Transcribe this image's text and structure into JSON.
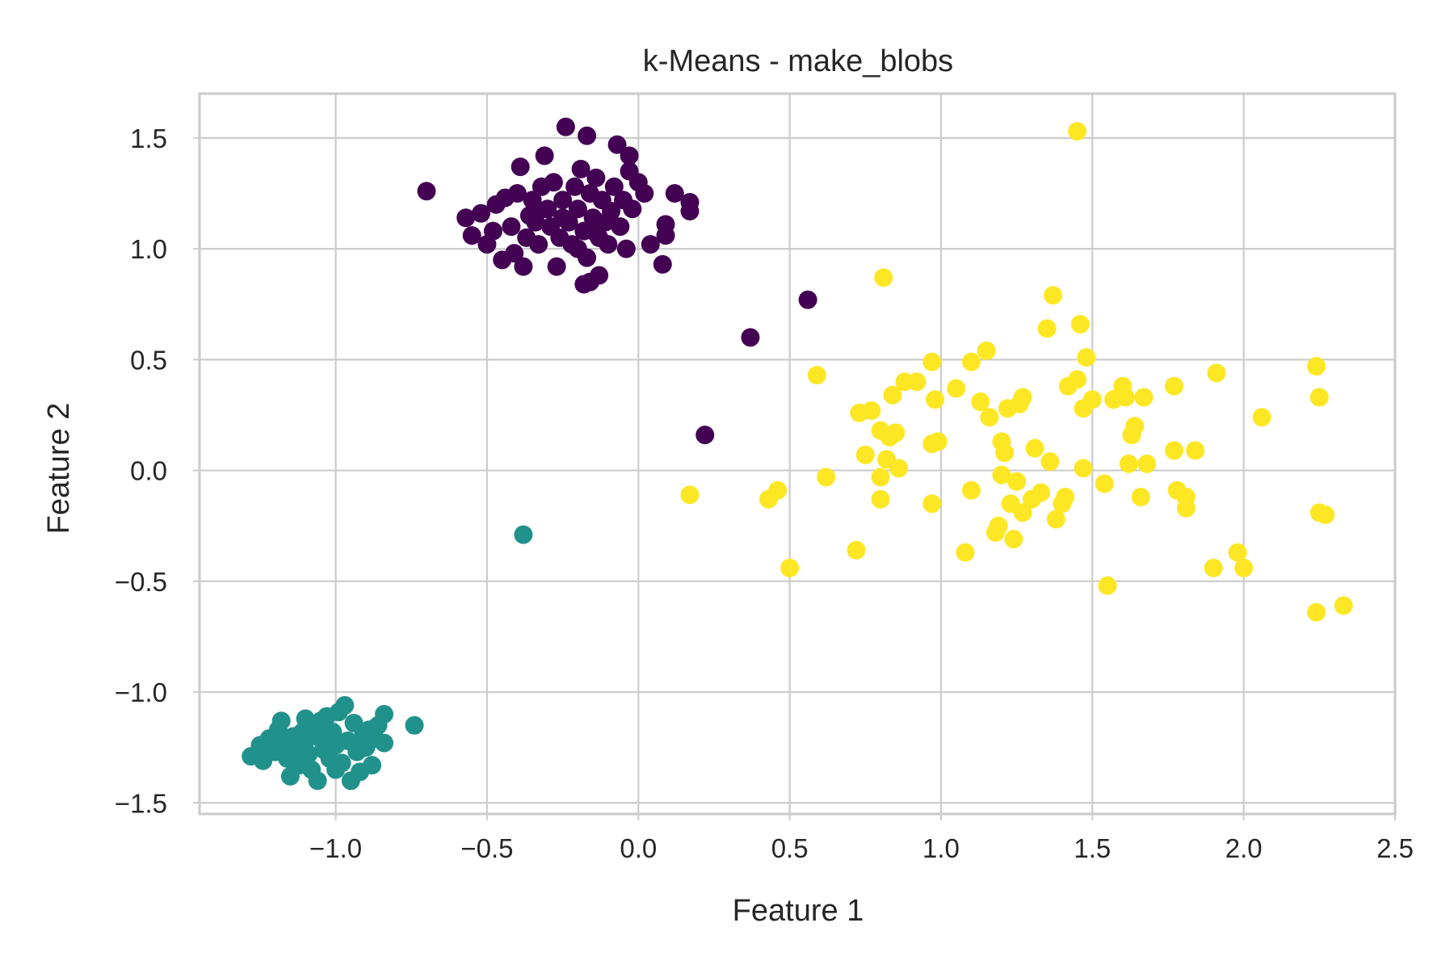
{
  "chart_data": {
    "type": "scatter",
    "title": "k-Means - make_blobs",
    "xlabel": "Feature 1",
    "ylabel": "Feature 2",
    "xlim": [
      -1.45,
      2.5
    ],
    "ylim": [
      -1.55,
      1.7
    ],
    "xticks": [
      -1.0,
      -0.5,
      0.0,
      0.5,
      1.0,
      1.5,
      2.0,
      2.5
    ],
    "xtick_labels": [
      "−1.0",
      "−0.5",
      "0.0",
      "0.5",
      "1.0",
      "1.5",
      "2.0",
      "2.5"
    ],
    "yticks": [
      -1.5,
      -1.0,
      -0.5,
      0.0,
      0.5,
      1.0,
      1.5
    ],
    "ytick_labels": [
      "−1.5",
      "−1.0",
      "−0.5",
      "0.0",
      "0.5",
      "1.0",
      "1.5"
    ],
    "grid": true,
    "series": [
      {
        "color": "#440154",
        "points": [
          [
            -0.7,
            1.26
          ],
          [
            -0.57,
            1.14
          ],
          [
            -0.55,
            1.06
          ],
          [
            -0.52,
            1.16
          ],
          [
            -0.5,
            1.02
          ],
          [
            -0.48,
            1.08
          ],
          [
            -0.47,
            1.2
          ],
          [
            -0.45,
            0.95
          ],
          [
            -0.44,
            1.23
          ],
          [
            -0.42,
            1.1
          ],
          [
            -0.41,
            0.98
          ],
          [
            -0.4,
            1.25
          ],
          [
            -0.39,
            1.37
          ],
          [
            -0.38,
            0.92
          ],
          [
            -0.37,
            1.05
          ],
          [
            -0.36,
            1.15
          ],
          [
            -0.35,
            1.22
          ],
          [
            -0.34,
            1.12
          ],
          [
            -0.33,
            1.02
          ],
          [
            -0.32,
            1.28
          ],
          [
            -0.31,
            1.42
          ],
          [
            -0.3,
            1.18
          ],
          [
            -0.29,
            1.1
          ],
          [
            -0.28,
            1.3
          ],
          [
            -0.27,
            0.92
          ],
          [
            -0.26,
            1.05
          ],
          [
            -0.25,
            1.22
          ],
          [
            -0.24,
            1.55
          ],
          [
            -0.23,
            1.12
          ],
          [
            -0.22,
            1.02
          ],
          [
            -0.21,
            1.28
          ],
          [
            -0.2,
            1.18
          ],
          [
            -0.19,
            1.36
          ],
          [
            -0.18,
            1.08
          ],
          [
            -0.17,
            0.96
          ],
          [
            -0.17,
            1.51
          ],
          [
            -0.16,
            1.25
          ],
          [
            -0.15,
            1.14
          ],
          [
            -0.14,
            1.32
          ],
          [
            -0.13,
            0.88
          ],
          [
            -0.13,
            1.05
          ],
          [
            -0.12,
            1.22
          ],
          [
            -0.11,
            1.12
          ],
          [
            -0.1,
            1.02
          ],
          [
            -0.09,
            1.17
          ],
          [
            -0.08,
            1.28
          ],
          [
            -0.07,
            1.47
          ],
          [
            -0.06,
            1.1
          ],
          [
            -0.05,
            1.22
          ],
          [
            -0.04,
            1.0
          ],
          [
            -0.03,
            1.35
          ],
          [
            -0.03,
            1.42
          ],
          [
            -0.02,
            1.18
          ],
          [
            0.0,
            1.3
          ],
          [
            0.02,
            1.25
          ],
          [
            0.04,
            1.02
          ],
          [
            0.08,
            0.93
          ],
          [
            0.09,
            1.06
          ],
          [
            0.09,
            1.11
          ],
          [
            0.12,
            1.25
          ],
          [
            0.17,
            1.17
          ],
          [
            0.17,
            1.21
          ],
          [
            -0.18,
            0.84
          ],
          [
            -0.16,
            0.85
          ],
          [
            -0.2,
            1.0
          ],
          [
            -0.15,
            1.08
          ],
          [
            -0.25,
            1.14
          ],
          [
            -0.33,
            1.17
          ],
          [
            0.37,
            0.6
          ],
          [
            0.56,
            0.77
          ],
          [
            0.22,
            0.16
          ]
        ]
      },
      {
        "color": "#21918c",
        "points": [
          [
            -1.28,
            -1.29
          ],
          [
            -1.25,
            -1.24
          ],
          [
            -1.24,
            -1.31
          ],
          [
            -1.22,
            -1.21
          ],
          [
            -1.2,
            -1.27
          ],
          [
            -1.19,
            -1.17
          ],
          [
            -1.18,
            -1.13
          ],
          [
            -1.17,
            -1.24
          ],
          [
            -1.16,
            -1.3
          ],
          [
            -1.15,
            -1.38
          ],
          [
            -1.14,
            -1.2
          ],
          [
            -1.13,
            -1.25
          ],
          [
            -1.12,
            -1.33
          ],
          [
            -1.11,
            -1.18
          ],
          [
            -1.1,
            -1.22
          ],
          [
            -1.09,
            -1.28
          ],
          [
            -1.08,
            -1.35
          ],
          [
            -1.07,
            -1.15
          ],
          [
            -1.06,
            -1.4
          ],
          [
            -1.05,
            -1.21
          ],
          [
            -1.04,
            -1.26
          ],
          [
            -1.03,
            -1.11
          ],
          [
            -1.02,
            -1.3
          ],
          [
            -1.01,
            -1.18
          ],
          [
            -1.0,
            -1.24
          ],
          [
            -0.99,
            -1.09
          ],
          [
            -0.98,
            -1.32
          ],
          [
            -0.97,
            -1.06
          ],
          [
            -0.96,
            -1.22
          ],
          [
            -0.95,
            -1.4
          ],
          [
            -0.94,
            -1.14
          ],
          [
            -0.93,
            -1.27
          ],
          [
            -0.92,
            -1.36
          ],
          [
            -0.91,
            -1.2
          ],
          [
            -0.9,
            -1.25
          ],
          [
            -0.89,
            -1.17
          ],
          [
            -0.88,
            -1.33
          ],
          [
            -0.87,
            -1.21
          ],
          [
            -0.86,
            -1.15
          ],
          [
            -0.84,
            -1.23
          ],
          [
            -0.84,
            -1.1
          ],
          [
            -0.74,
            -1.15
          ],
          [
            -1.05,
            -1.13
          ],
          [
            -1.0,
            -1.35
          ],
          [
            -1.1,
            -1.12
          ],
          [
            -0.38,
            -0.29
          ]
        ]
      },
      {
        "color": "#fde725",
        "points": [
          [
            0.17,
            -0.11
          ],
          [
            0.43,
            -0.13
          ],
          [
            0.46,
            -0.09
          ],
          [
            0.5,
            -0.44
          ],
          [
            0.59,
            0.43
          ],
          [
            0.62,
            -0.03
          ],
          [
            0.72,
            -0.36
          ],
          [
            0.73,
            0.26
          ],
          [
            0.75,
            0.07
          ],
          [
            0.77,
            0.27
          ],
          [
            0.8,
            -0.13
          ],
          [
            0.8,
            0.18
          ],
          [
            0.81,
            0.87
          ],
          [
            0.82,
            0.05
          ],
          [
            0.83,
            0.15
          ],
          [
            0.84,
            0.34
          ],
          [
            0.85,
            0.17
          ],
          [
            0.86,
            0.01
          ],
          [
            0.88,
            0.4
          ],
          [
            0.92,
            0.4
          ],
          [
            0.97,
            0.12
          ],
          [
            0.97,
            0.49
          ],
          [
            0.98,
            0.32
          ],
          [
            0.99,
            0.13
          ],
          [
            0.97,
            -0.15
          ],
          [
            1.05,
            0.37
          ],
          [
            1.08,
            -0.37
          ],
          [
            1.1,
            -0.09
          ],
          [
            1.1,
            0.49
          ],
          [
            1.13,
            0.31
          ],
          [
            1.15,
            0.54
          ],
          [
            1.16,
            0.24
          ],
          [
            1.19,
            -0.25
          ],
          [
            1.2,
            0.13
          ],
          [
            1.21,
            0.08
          ],
          [
            1.22,
            0.28
          ],
          [
            1.23,
            -0.15
          ],
          [
            1.24,
            -0.31
          ],
          [
            1.25,
            -0.05
          ],
          [
            1.26,
            0.3
          ],
          [
            1.27,
            -0.19
          ],
          [
            1.27,
            0.33
          ],
          [
            1.3,
            -0.13
          ],
          [
            1.31,
            0.1
          ],
          [
            1.33,
            -0.1
          ],
          [
            1.35,
            0.64
          ],
          [
            1.36,
            0.04
          ],
          [
            1.37,
            0.79
          ],
          [
            1.38,
            -0.22
          ],
          [
            1.4,
            -0.15
          ],
          [
            1.41,
            -0.12
          ],
          [
            1.42,
            0.38
          ],
          [
            1.45,
            0.41
          ],
          [
            1.46,
            0.66
          ],
          [
            1.47,
            0.28
          ],
          [
            1.47,
            0.01
          ],
          [
            1.48,
            0.51
          ],
          [
            1.5,
            0.32
          ],
          [
            1.54,
            -0.06
          ],
          [
            1.55,
            -0.52
          ],
          [
            1.57,
            0.32
          ],
          [
            1.6,
            0.38
          ],
          [
            1.61,
            0.33
          ],
          [
            1.62,
            0.03
          ],
          [
            1.63,
            0.16
          ],
          [
            1.64,
            0.2
          ],
          [
            1.66,
            -0.12
          ],
          [
            1.67,
            0.33
          ],
          [
            1.68,
            0.03
          ],
          [
            1.77,
            0.38
          ],
          [
            1.77,
            0.09
          ],
          [
            1.78,
            -0.09
          ],
          [
            1.81,
            -0.12
          ],
          [
            1.81,
            -0.17
          ],
          [
            1.84,
            0.09
          ],
          [
            1.9,
            -0.44
          ],
          [
            1.91,
            0.44
          ],
          [
            1.98,
            -0.37
          ],
          [
            2.0,
            -0.44
          ],
          [
            2.06,
            0.24
          ],
          [
            2.24,
            0.47
          ],
          [
            2.25,
            0.33
          ],
          [
            2.25,
            -0.19
          ],
          [
            2.27,
            -0.2
          ],
          [
            2.24,
            -0.64
          ],
          [
            2.33,
            -0.61
          ],
          [
            1.45,
            1.53
          ],
          [
            1.2,
            -0.02
          ],
          [
            1.18,
            -0.28
          ],
          [
            0.8,
            -0.03
          ]
        ]
      }
    ]
  }
}
